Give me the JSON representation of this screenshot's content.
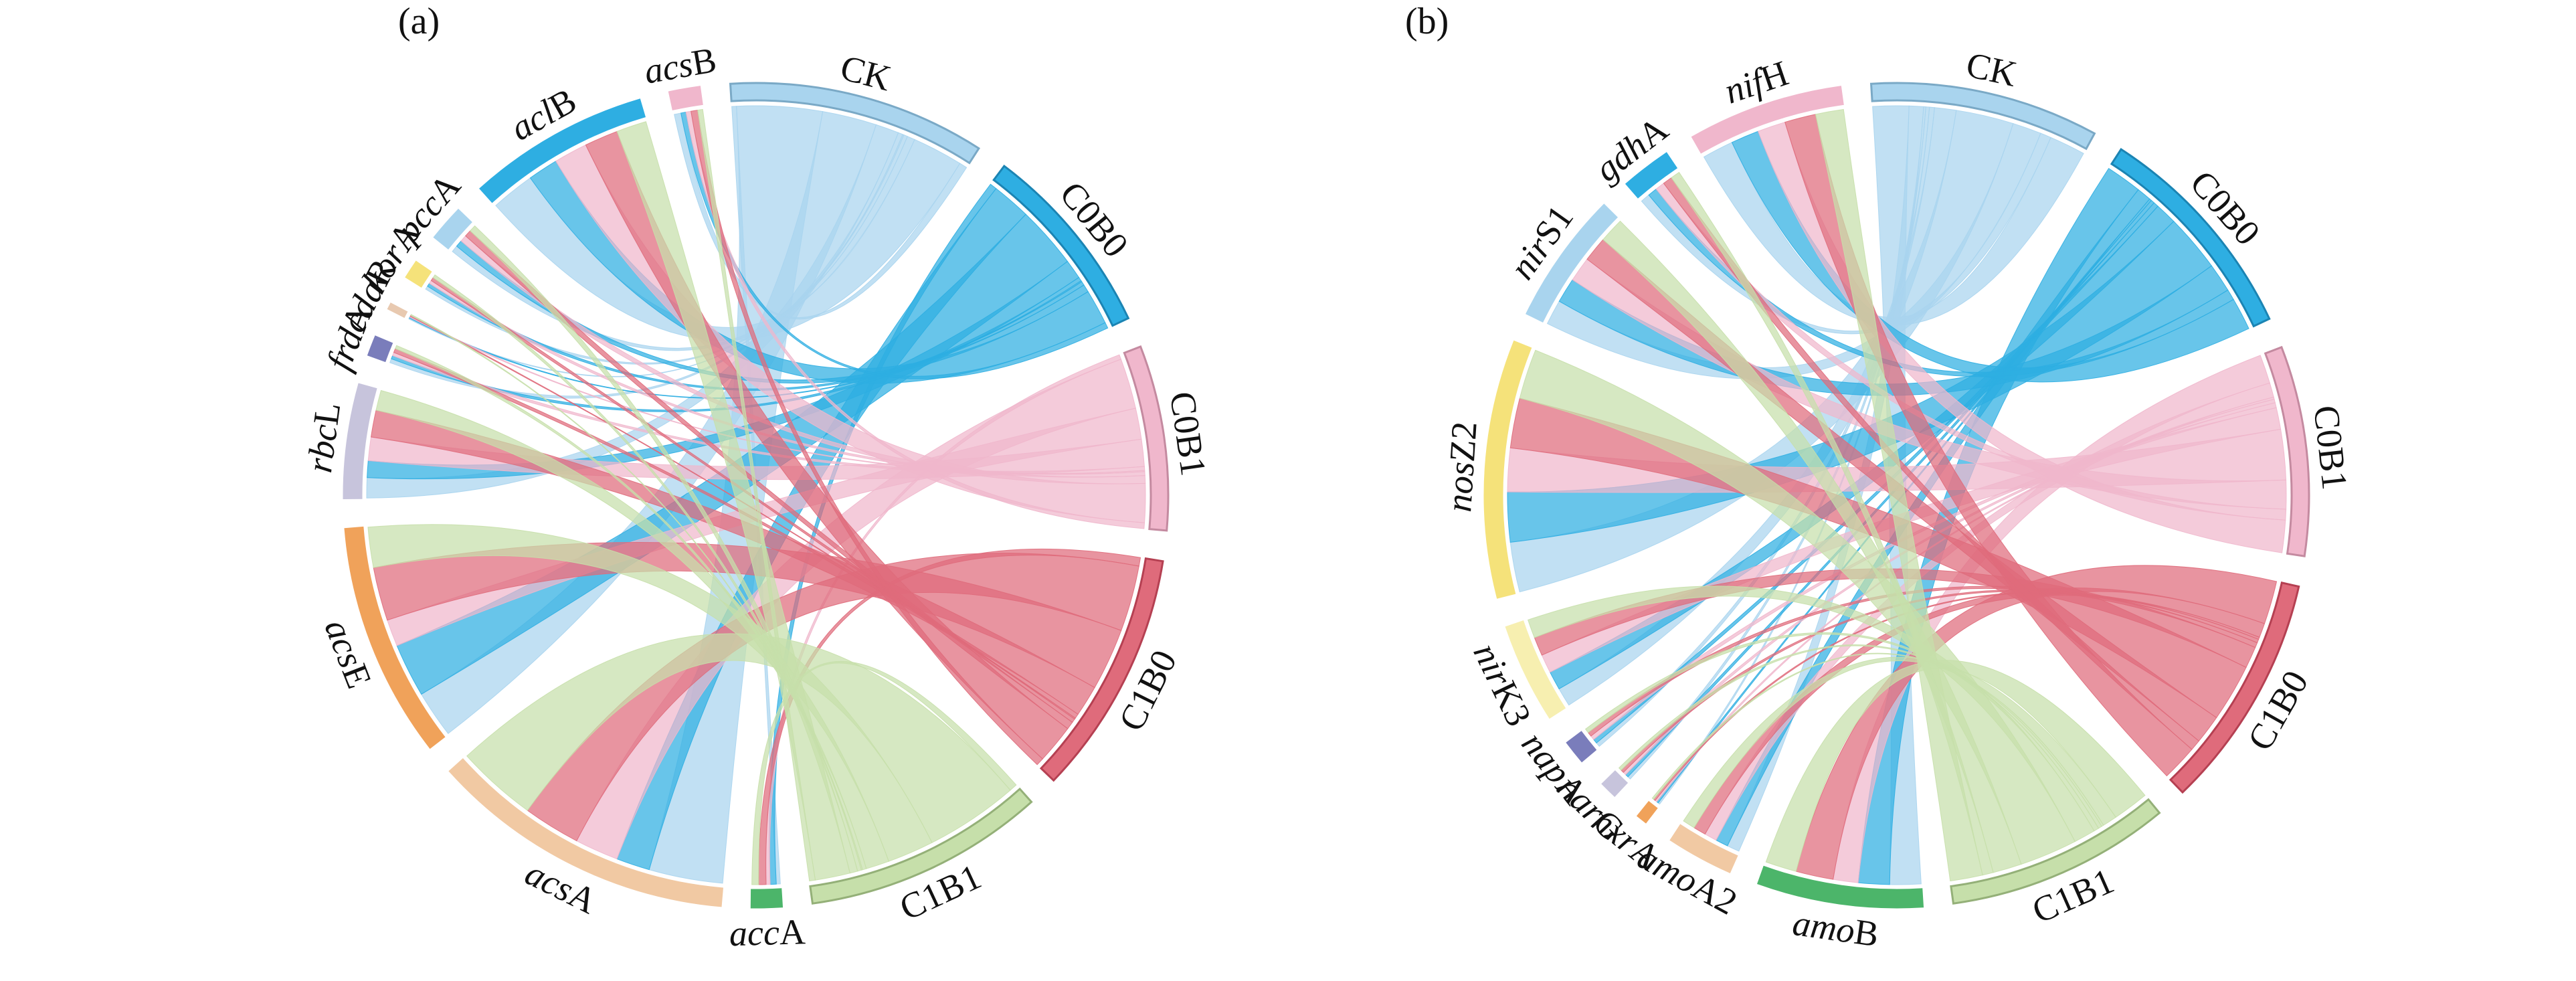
{
  "chart_data": [
    {
      "type": "chord",
      "panel_label": "(a)",
      "treatments": [
        {
          "name": "CK",
          "color": "#a9d4ee",
          "stroke": "#7aa9c6"
        },
        {
          "name": "C0B0",
          "color": "#2eaee2",
          "stroke": "#1b84b3"
        },
        {
          "name": "C0B1",
          "color": "#f0b7cc",
          "stroke": "#c48aa0"
        },
        {
          "name": "C1B0",
          "color": "#df6b7b",
          "stroke": "#b54052"
        },
        {
          "name": "C1B1",
          "color": "#c6dfaa",
          "stroke": "#94b078"
        }
      ],
      "genes": [
        {
          "italic": "acc",
          "plain": "A",
          "color": "#4cb56a",
          "values": [
            0.12,
            0.18,
            0.12,
            0.22,
            0.2
          ]
        },
        {
          "italic": "acs",
          "plain": "A",
          "color": "#f1c9a3",
          "values": [
            2.2,
            1.0,
            1.3,
            1.7,
            2.4
          ]
        },
        {
          "italic": "acs",
          "plain": "E",
          "color": "#f0a25a",
          "values": [
            1.4,
            1.6,
            0.8,
            1.6,
            1.2
          ]
        },
        {
          "italic": "rbc",
          "plain": "L",
          "color": "#c7c4dc",
          "values": [
            0.6,
            0.5,
            0.7,
            0.8,
            0.6
          ]
        },
        {
          "italic": "frd",
          "plain": "A",
          "color": "#7a7dbb",
          "values": [
            0.12,
            0.1,
            0.1,
            0.12,
            0.1
          ]
        },
        {
          "italic": "cda",
          "plain": "R",
          "color": "#e8c9b0",
          "values": [
            0.03,
            0.03,
            0.03,
            0.03,
            0.03
          ]
        },
        {
          "italic": "kor",
          "plain": "A",
          "color": "#f5e27a",
          "values": [
            0.1,
            0.1,
            0.1,
            0.1,
            0.1
          ]
        },
        {
          "italic": "pcc",
          "plain": "A",
          "color": "#a9d4ee",
          "values": [
            0.2,
            0.2,
            0.2,
            0.2,
            0.2
          ]
        },
        {
          "italic": "acl",
          "plain": "B",
          "color": "#2eaee2",
          "values": [
            1.3,
            0.9,
            1.0,
            1.0,
            0.9
          ]
        },
        {
          "italic": "acs",
          "plain": "B",
          "color": "#f0b7cc",
          "values": [
            0.2,
            0.15,
            0.15,
            0.2,
            0.15
          ]
        }
      ]
    },
    {
      "type": "chord",
      "panel_label": "(b)",
      "treatments": [
        {
          "name": "CK",
          "color": "#a9d4ee",
          "stroke": "#7aa9c6"
        },
        {
          "name": "C0B0",
          "color": "#2eaee2",
          "stroke": "#1b84b3"
        },
        {
          "name": "C0B1",
          "color": "#f0b7cc",
          "stroke": "#c48aa0"
        },
        {
          "name": "C1B0",
          "color": "#df6b7b",
          "stroke": "#b54052"
        },
        {
          "name": "C1B1",
          "color": "#c6dfaa",
          "stroke": "#94b078"
        }
      ],
      "genes": [
        {
          "italic": "amo",
          "plain": "B",
          "color": "#4cb56a",
          "values": [
            0.5,
            0.5,
            0.4,
            0.6,
            0.5
          ]
        },
        {
          "italic": "amo",
          "plain": "A2",
          "color": "#f1c9a3",
          "values": [
            0.2,
            0.2,
            0.2,
            0.2,
            0.2
          ]
        },
        {
          "italic": "nxr",
          "plain": "A",
          "color": "#f0a25a",
          "values": [
            0.03,
            0.03,
            0.03,
            0.03,
            0.03
          ]
        },
        {
          "italic": "nar",
          "plain": "G",
          "color": "#c7c4dc",
          "values": [
            0.05,
            0.05,
            0.05,
            0.05,
            0.05
          ]
        },
        {
          "italic": "nap",
          "plain": "A",
          "color": "#7a7dbb",
          "values": [
            0.07,
            0.07,
            0.07,
            0.07,
            0.07
          ]
        },
        {
          "italic": "nir",
          "plain": "K3",
          "color": "#f7efb0",
          "values": [
            0.3,
            0.3,
            0.3,
            0.3,
            0.3
          ]
        },
        {
          "italic": "nos",
          "plain": "Z2",
          "color": "#f5e27a",
          "values": [
            0.8,
            0.8,
            0.7,
            0.8,
            0.8
          ]
        },
        {
          "italic": "nir",
          "plain": "S1",
          "color": "#a9d4ee",
          "values": [
            0.4,
            0.4,
            0.4,
            0.4,
            0.4
          ]
        },
        {
          "italic": "gdh",
          "plain": "A",
          "color": "#2eaee2",
          "values": [
            0.15,
            0.15,
            0.15,
            0.15,
            0.15
          ]
        },
        {
          "italic": "nif",
          "plain": "H",
          "color": "#f0b7cc",
          "values": [
            0.5,
            0.45,
            0.45,
            0.5,
            0.45
          ]
        }
      ]
    }
  ]
}
